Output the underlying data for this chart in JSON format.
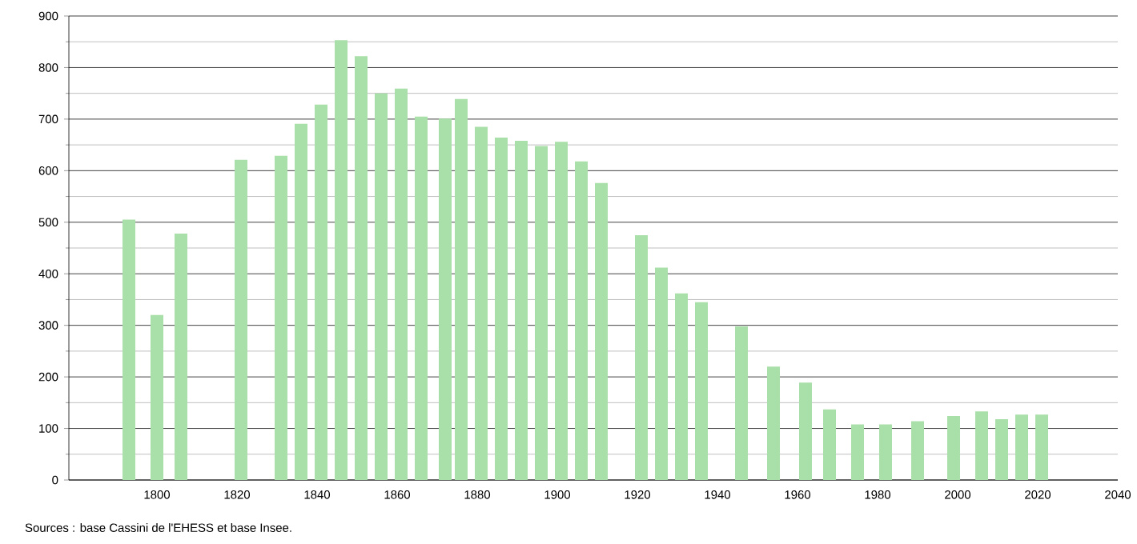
{
  "chart_data": {
    "type": "bar",
    "color": "#a9dfa9",
    "x": [
      1793,
      1800,
      1806,
      1821,
      1831,
      1836,
      1841,
      1846,
      1851,
      1856,
      1861,
      1866,
      1872,
      1876,
      1881,
      1886,
      1891,
      1896,
      1901,
      1906,
      1911,
      1921,
      1926,
      1931,
      1936,
      1946,
      1954,
      1962,
      1968,
      1975,
      1982,
      1990,
      1999,
      2006,
      2011,
      2016,
      2021
    ],
    "values": [
      505,
      320,
      478,
      621,
      629,
      691,
      728,
      853,
      822,
      750,
      759,
      705,
      701,
      739,
      685,
      664,
      658,
      648,
      656,
      618,
      576,
      475,
      412,
      362,
      345,
      298,
      220,
      189,
      137,
      108,
      108,
      114,
      124,
      133,
      118,
      127,
      127
    ],
    "xlim": [
      1778,
      2040
    ],
    "xticks": [
      1800,
      1820,
      1840,
      1860,
      1880,
      1900,
      1920,
      1940,
      1960,
      1980,
      2000,
      2020,
      2040
    ],
    "ylim": [
      0,
      900
    ],
    "yticks": [
      0,
      100,
      200,
      300,
      400,
      500,
      600,
      700,
      800,
      900
    ],
    "grid": "y",
    "annotations": [
      "Sources : base Cassini de l'EHESS et base Insee."
    ]
  }
}
